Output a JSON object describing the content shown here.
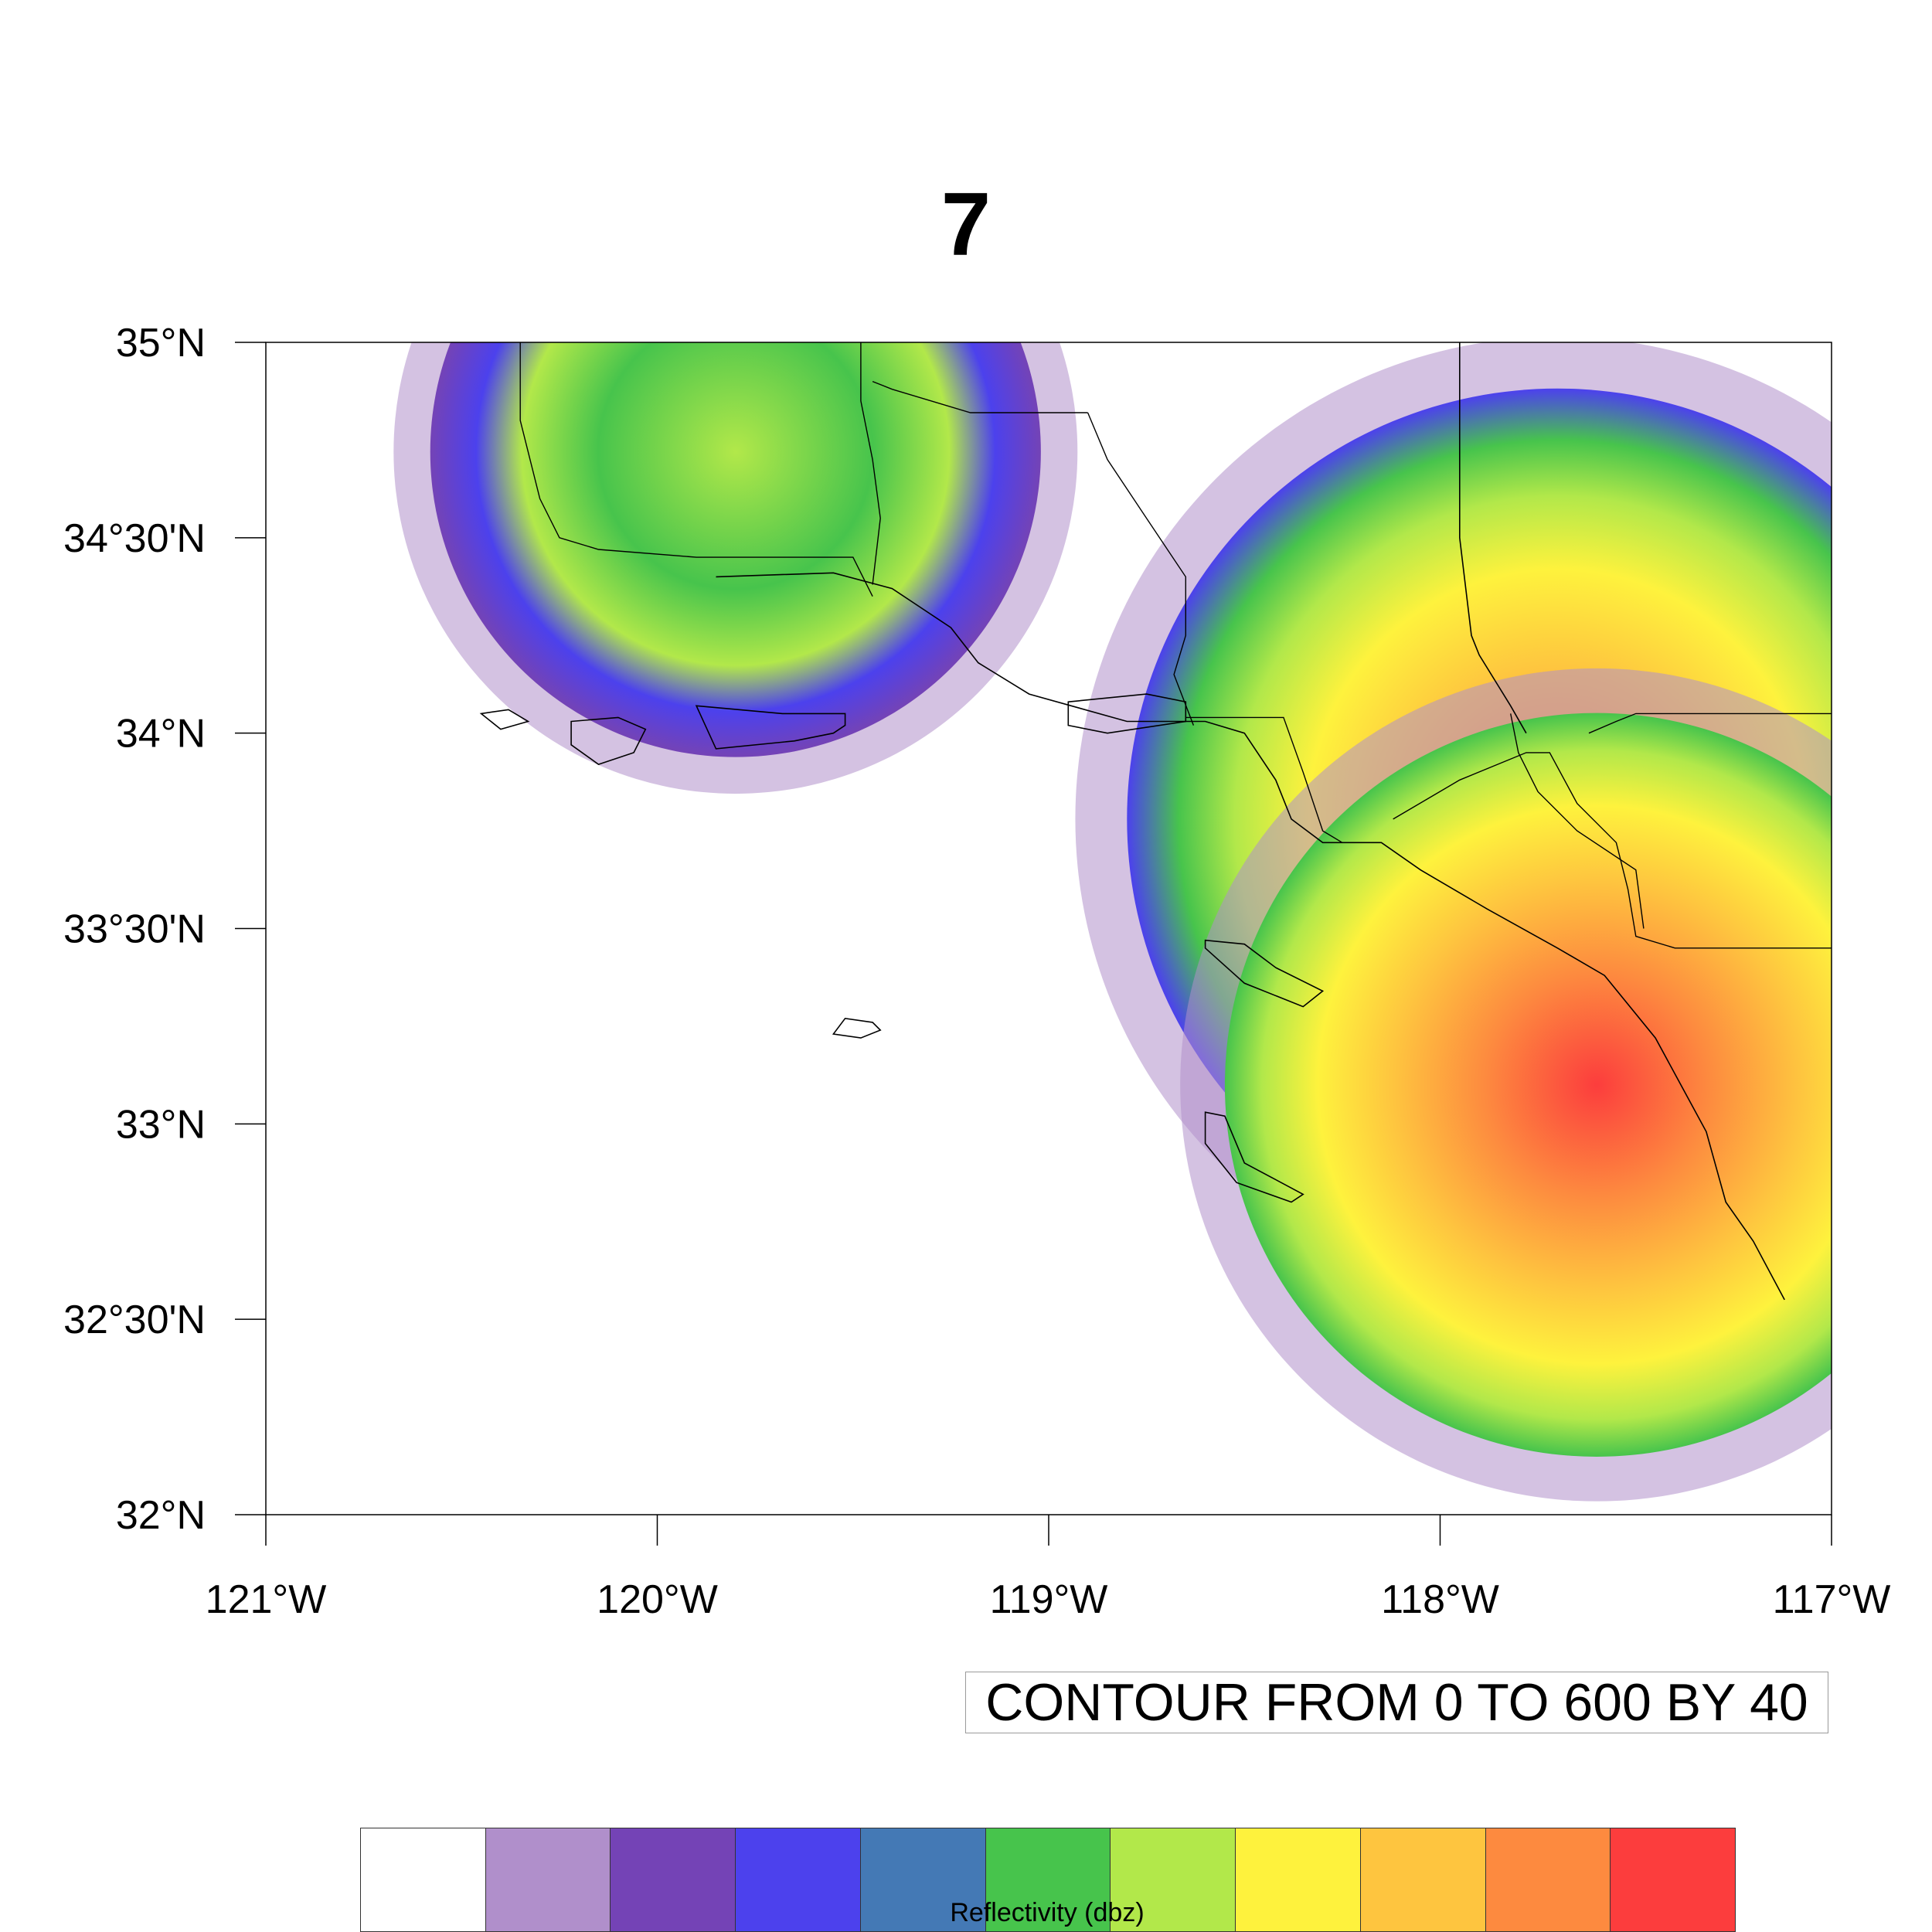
{
  "title": "7",
  "info_label": "CONTOUR FROM 0 TO 600 BY 40",
  "map": {
    "lon_range": [
      -121,
      -117
    ],
    "lat_range": [
      32,
      35
    ],
    "lat_ticks": [
      {
        "value": 35,
        "label": "35°N"
      },
      {
        "value": 34.5,
        "label": "34°30'N"
      },
      {
        "value": 34,
        "label": "34°N"
      },
      {
        "value": 33.5,
        "label": "33°30'N"
      },
      {
        "value": 33,
        "label": "33°N"
      },
      {
        "value": 32.5,
        "label": "32°30'N"
      },
      {
        "value": 32,
        "label": "32°N"
      }
    ],
    "lon_ticks": [
      {
        "value": -121,
        "label": "121°W"
      },
      {
        "value": -120,
        "label": "120°W"
      },
      {
        "value": -119,
        "label": "119°W"
      },
      {
        "value": -118,
        "label": "118°W"
      },
      {
        "value": -117,
        "label": "117°W"
      }
    ],
    "features": {
      "coastline": [
        [
          -119.85,
          34.4
        ],
        [
          -119.55,
          34.41
        ],
        [
          -119.4,
          34.37
        ],
        [
          -119.25,
          34.27
        ],
        [
          -119.18,
          34.18
        ],
        [
          -119.05,
          34.1
        ],
        [
          -118.8,
          34.03
        ],
        [
          -118.6,
          34.03
        ],
        [
          -118.5,
          34.0
        ],
        [
          -118.42,
          33.88
        ],
        [
          -118.38,
          33.78
        ],
        [
          -118.3,
          33.72
        ],
        [
          -118.15,
          33.72
        ],
        [
          -118.05,
          33.65
        ],
        [
          -117.88,
          33.55
        ],
        [
          -117.7,
          33.45
        ],
        [
          -117.58,
          33.38
        ],
        [
          -117.45,
          33.22
        ],
        [
          -117.32,
          32.98
        ],
        [
          -117.27,
          32.8
        ],
        [
          -117.2,
          32.7
        ],
        [
          -117.12,
          32.55
        ]
      ],
      "state_border": [
        [
          -117.95,
          35.0
        ],
        [
          -117.95,
          34.82
        ],
        [
          -117.95,
          34.5
        ],
        [
          -117.92,
          34.25
        ],
        [
          -117.9,
          34.2
        ],
        [
          -117.82,
          34.07
        ],
        [
          -117.78,
          34.0
        ]
      ],
      "county_lines": [
        [
          [
            -118.9,
            34.82
          ],
          [
            -118.85,
            34.7
          ],
          [
            -118.75,
            34.55
          ],
          [
            -118.65,
            34.4
          ],
          [
            -118.65,
            34.25
          ],
          [
            -118.68,
            34.15
          ],
          [
            -118.63,
            34.02
          ]
        ],
        [
          [
            -118.9,
            34.82
          ],
          [
            -119.2,
            34.82
          ],
          [
            -119.4,
            34.88
          ],
          [
            -119.45,
            34.9
          ]
        ],
        [
          [
            -118.65,
            34.04
          ],
          [
            -118.4,
            34.04
          ],
          [
            -118.35,
            33.9
          ],
          [
            -118.3,
            33.75
          ],
          [
            -118.25,
            33.72
          ]
        ],
        [
          [
            -118.12,
            33.78
          ],
          [
            -117.95,
            33.88
          ],
          [
            -117.78,
            33.95
          ],
          [
            -117.72,
            33.95
          ],
          [
            -117.65,
            33.82
          ],
          [
            -117.55,
            33.72
          ],
          [
            -117.52,
            33.6
          ],
          [
            -117.5,
            33.48
          ],
          [
            -117.4,
            33.45
          ],
          [
            -117.25,
            33.45
          ],
          [
            -117.0,
            33.45
          ]
        ],
        [
          [
            -117.62,
            34.0
          ],
          [
            -117.55,
            34.03
          ],
          [
            -117.5,
            34.05
          ],
          [
            -117.0,
            34.05
          ]
        ],
        [
          [
            -117.82,
            34.05
          ],
          [
            -117.8,
            33.95
          ],
          [
            -117.75,
            33.85
          ],
          [
            -117.65,
            33.75
          ],
          [
            -117.5,
            33.65
          ],
          [
            -117.48,
            33.5
          ]
        ],
        [
          [
            -120.35,
            35.0
          ],
          [
            -120.35,
            34.8
          ],
          [
            -120.3,
            34.6
          ],
          [
            -120.25,
            34.5
          ],
          [
            -120.15,
            34.47
          ],
          [
            -119.9,
            34.45
          ],
          [
            -119.7,
            34.45
          ],
          [
            -119.5,
            34.45
          ],
          [
            -119.45,
            34.35
          ]
        ],
        [
          [
            -119.48,
            35.0
          ],
          [
            -119.48,
            34.85
          ],
          [
            -119.45,
            34.7
          ],
          [
            -119.43,
            34.55
          ],
          [
            -119.45,
            34.38
          ]
        ]
      ],
      "islands": [
        [
          [
            -120.45,
            34.05
          ],
          [
            -120.38,
            34.06
          ],
          [
            -120.33,
            34.03
          ],
          [
            -120.4,
            34.01
          ],
          [
            -120.45,
            34.05
          ]
        ],
        [
          [
            -120.22,
            34.03
          ],
          [
            -120.1,
            34.04
          ],
          [
            -120.03,
            34.01
          ],
          [
            -120.06,
            33.95
          ],
          [
            -120.15,
            33.92
          ],
          [
            -120.22,
            33.97
          ],
          [
            -120.22,
            34.03
          ]
        ],
        [
          [
            -119.9,
            34.07
          ],
          [
            -119.68,
            34.05
          ],
          [
            -119.52,
            34.05
          ],
          [
            -119.52,
            34.02
          ],
          [
            -119.55,
            34.0
          ],
          [
            -119.65,
            33.98
          ],
          [
            -119.85,
            33.96
          ],
          [
            -119.9,
            34.07
          ]
        ],
        [
          [
            -118.95,
            34.08
          ],
          [
            -118.75,
            34.1
          ],
          [
            -118.65,
            34.08
          ],
          [
            -118.65,
            34.03
          ],
          [
            -118.85,
            34.0
          ],
          [
            -118.95,
            34.02
          ],
          [
            -118.95,
            34.08
          ]
        ],
        [
          [
            -119.45,
            33.26
          ],
          [
            -119.52,
            33.27
          ],
          [
            -119.55,
            33.23
          ],
          [
            -119.48,
            33.22
          ],
          [
            -119.43,
            33.24
          ],
          [
            -119.45,
            33.26
          ]
        ],
        [
          [
            -118.6,
            33.47
          ],
          [
            -118.5,
            33.46
          ],
          [
            -118.42,
            33.4
          ],
          [
            -118.3,
            33.34
          ],
          [
            -118.35,
            33.3
          ],
          [
            -118.5,
            33.36
          ],
          [
            -118.6,
            33.45
          ],
          [
            -118.6,
            33.47
          ]
        ],
        [
          [
            -118.6,
            33.03
          ],
          [
            -118.55,
            33.02
          ],
          [
            -118.5,
            32.9
          ],
          [
            -118.35,
            32.82
          ],
          [
            -118.38,
            32.8
          ],
          [
            -118.52,
            32.85
          ],
          [
            -118.6,
            32.95
          ],
          [
            -118.6,
            33.03
          ]
        ]
      ]
    },
    "radar_sites": [
      {
        "lon": -119.8,
        "lat": 34.72,
        "radius_deg": 0.78
      },
      {
        "lon": -117.7,
        "lat": 33.78,
        "radius_deg": 1.1
      },
      {
        "lon": -117.6,
        "lat": 33.1,
        "radius_deg": 0.95
      }
    ]
  },
  "colorbar": {
    "label": "Reflectivity (dbz)",
    "colors": [
      "#ffffff",
      "#b08fcb",
      "#7443b6",
      "#4c41ed",
      "#4479b5",
      "#47c44c",
      "#b2e84a",
      "#fef23d",
      "#fec53f",
      "#fd8a3f",
      "#fc3d3d"
    ]
  }
}
